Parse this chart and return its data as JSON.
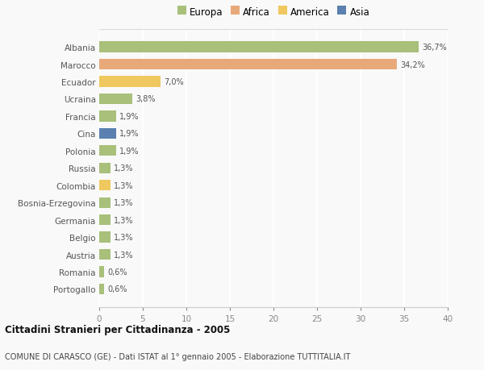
{
  "countries": [
    "Albania",
    "Marocco",
    "Ecuador",
    "Ucraina",
    "Francia",
    "Cina",
    "Polonia",
    "Russia",
    "Colombia",
    "Bosnia-Erzegovina",
    "Germania",
    "Belgio",
    "Austria",
    "Romania",
    "Portogallo"
  ],
  "values": [
    36.7,
    34.2,
    7.0,
    3.8,
    1.9,
    1.9,
    1.9,
    1.3,
    1.3,
    1.3,
    1.3,
    1.3,
    1.3,
    0.6,
    0.6
  ],
  "labels": [
    "36,7%",
    "34,2%",
    "7,0%",
    "3,8%",
    "1,9%",
    "1,9%",
    "1,9%",
    "1,3%",
    "1,3%",
    "1,3%",
    "1,3%",
    "1,3%",
    "1,3%",
    "0,6%",
    "0,6%"
  ],
  "colors": [
    "#a8c07a",
    "#e8a97a",
    "#f0c860",
    "#a8c07a",
    "#a8c07a",
    "#5b80b0",
    "#a8c07a",
    "#a8c07a",
    "#f0c860",
    "#a8c07a",
    "#a8c07a",
    "#a8c07a",
    "#a8c07a",
    "#a8c07a",
    "#a8c07a"
  ],
  "legend_labels": [
    "Europa",
    "Africa",
    "America",
    "Asia"
  ],
  "legend_colors": [
    "#a8c07a",
    "#e8a97a",
    "#f0c860",
    "#5b80b0"
  ],
  "xlim": [
    0,
    40
  ],
  "xticks": [
    0,
    5,
    10,
    15,
    20,
    25,
    30,
    35,
    40
  ],
  "title": "Cittadini Stranieri per Cittadinanza - 2005",
  "subtitle": "COMUNE DI CARASCO (GE) - Dati ISTAT al 1° gennaio 2005 - Elaborazione TUTTITALIA.IT",
  "background_color": "#f9f9f9",
  "grid_color": "#ffffff",
  "bar_height": 0.62
}
